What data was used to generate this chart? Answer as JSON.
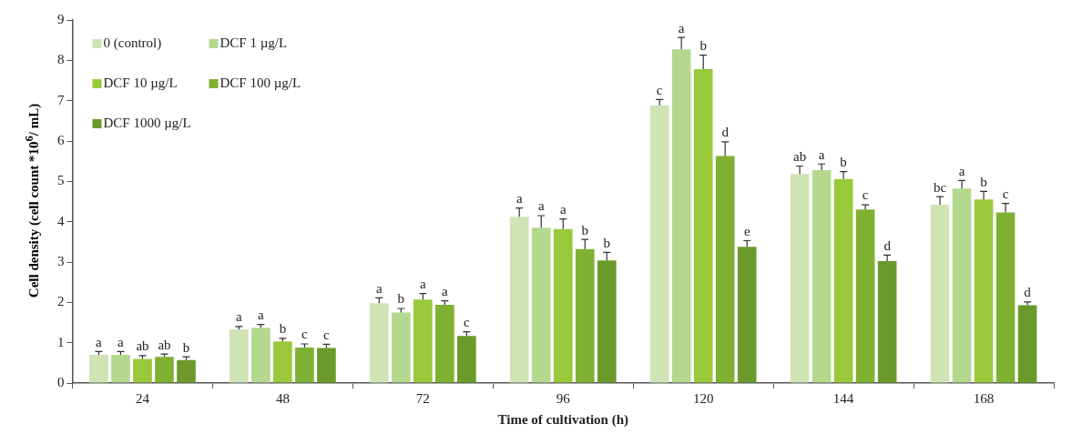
{
  "chart_data": {
    "type": "bar",
    "xlabel": "Time of cultivation (h)",
    "ylabel": "Cell density (cell count *10$^{6}$/ mL)",
    "categories": [
      "24",
      "48",
      "72",
      "96",
      "120",
      "144",
      "168"
    ],
    "series": [
      {
        "name": "0 (control)",
        "color": "#cfe3b5",
        "values": [
          0.7,
          1.33,
          1.98,
          4.12,
          6.88,
          5.18,
          4.42
        ],
        "errors": [
          0.08,
          0.07,
          0.13,
          0.22,
          0.15,
          0.2,
          0.2
        ],
        "value_labels": [
          "a",
          "a",
          "a",
          "a",
          "c",
          "ab",
          "bc"
        ]
      },
      {
        "name": "DCF 1 µg/L",
        "color": "#b5d88f",
        "values": [
          0.7,
          1.37,
          1.75,
          3.85,
          8.27,
          5.28,
          4.82
        ],
        "errors": [
          0.08,
          0.08,
          0.1,
          0.3,
          0.3,
          0.15,
          0.2
        ],
        "value_labels": [
          "a",
          "a",
          "b",
          "a",
          "a",
          "a",
          "a"
        ]
      },
      {
        "name": "DCF 10 µg/L",
        "color": "#99c93a",
        "values": [
          0.6,
          1.03,
          2.07,
          3.82,
          7.78,
          5.06,
          4.55
        ],
        "errors": [
          0.08,
          0.08,
          0.15,
          0.25,
          0.35,
          0.18,
          0.2
        ],
        "value_labels": [
          "ab",
          "b",
          "a",
          "a",
          "b",
          "b",
          "b"
        ]
      },
      {
        "name": "DCF 100 µg/L",
        "color": "#80b032",
        "values": [
          0.65,
          0.88,
          1.94,
          3.32,
          5.63,
          4.3,
          4.23
        ],
        "errors": [
          0.07,
          0.09,
          0.1,
          0.24,
          0.35,
          0.12,
          0.22
        ],
        "value_labels": [
          "ab",
          "c",
          "a",
          "b",
          "d",
          "c",
          "c"
        ]
      },
      {
        "name": "DCF 1000 µg/L",
        "color": "#6b9a2a",
        "values": [
          0.57,
          0.87,
          1.17,
          3.04,
          3.38,
          3.02,
          1.93
        ],
        "errors": [
          0.08,
          0.09,
          0.1,
          0.2,
          0.15,
          0.15,
          0.08
        ],
        "value_labels": [
          "b",
          "c",
          "c",
          "b",
          "e",
          "d",
          "d"
        ]
      }
    ],
    "ylim": [
      0,
      9
    ],
    "yticks": [
      0,
      1,
      2,
      3,
      4,
      5,
      6,
      7,
      8,
      9
    ],
    "grid": false,
    "legend": "top left"
  }
}
